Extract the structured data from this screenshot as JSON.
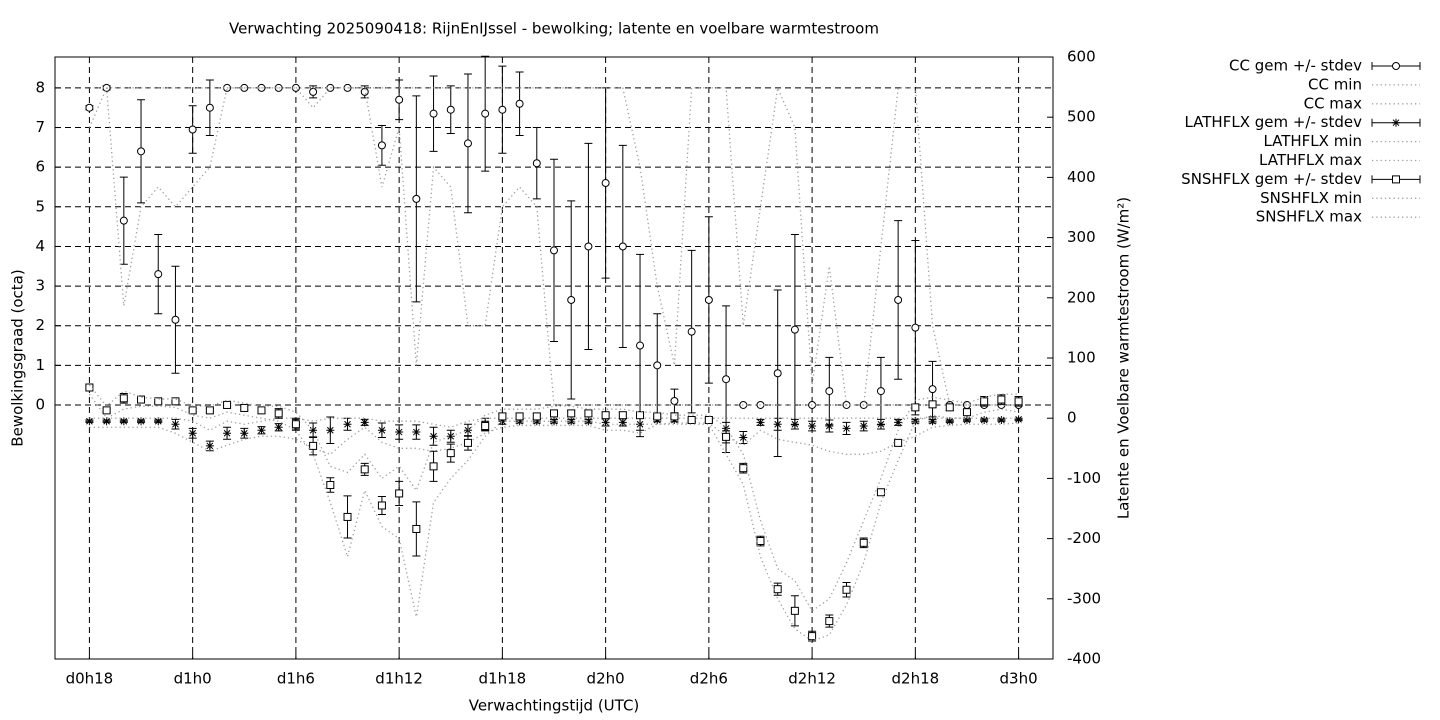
{
  "chart_data": {
    "type": "errorbar",
    "title": "Verwachting 2025090418: RijnEnIJssel - bewolking; latente en voelbare warmtestroom",
    "xlabel": "Verwachtingstijd (UTC)",
    "ylabel": "Bewolkingsgraad (octa)",
    "y2label": "Latente en Voelbare warmtestroom (W/m²)",
    "grid": true,
    "legend": "outside-right",
    "x": [
      18,
      19,
      20,
      21,
      22,
      23,
      24,
      25,
      26,
      27,
      28,
      29,
      30,
      31,
      32,
      33,
      34,
      35,
      36,
      37,
      38,
      39,
      40,
      41,
      42,
      43,
      44,
      45,
      46,
      47,
      48,
      49,
      50,
      51,
      52,
      53,
      54,
      55,
      56,
      57,
      58,
      59,
      60,
      61,
      62,
      63,
      64,
      65,
      66,
      67,
      68,
      69,
      70,
      71,
      72
    ],
    "xlim": [
      16,
      74
    ],
    "xticks": [
      {
        "value": 18,
        "label": "d0h18"
      },
      {
        "value": 24,
        "label": "d1h0"
      },
      {
        "value": 30,
        "label": "d1h6"
      },
      {
        "value": 36,
        "label": "d1h12"
      },
      {
        "value": 42,
        "label": "d1h18"
      },
      {
        "value": 48,
        "label": "d2h0"
      },
      {
        "value": 54,
        "label": "d2h6"
      },
      {
        "value": 60,
        "label": "d2h12"
      },
      {
        "value": 66,
        "label": "d2h18"
      },
      {
        "value": 72,
        "label": "d3h0"
      }
    ],
    "ylim": [
      -6.41,
      8.78
    ],
    "yticks": [
      0,
      1,
      2,
      3,
      4,
      5,
      6,
      7,
      8
    ],
    "y2lim": [
      -400,
      600
    ],
    "y2ticks": [
      -400,
      -300,
      -200,
      -100,
      0,
      100,
      200,
      300,
      400,
      500,
      600
    ],
    "series": [
      {
        "name": "CC gem +/- stdev",
        "color": "#000000",
        "style": "errorbars",
        "marker": "circle",
        "values": [
          7.5,
          8,
          4.65,
          6.4,
          3.3,
          2.15,
          6.95,
          7.5,
          8,
          8,
          8,
          8,
          8,
          7.9,
          8,
          8,
          7.9,
          6.55,
          7.7,
          5.2,
          7.35,
          7.45,
          6.6,
          7.35,
          7.45,
          7.6,
          6.1,
          3.9,
          2.65,
          4.0,
          5.6,
          4.0,
          1.5,
          1.0,
          0.1,
          1.85,
          2.65,
          0.65,
          0,
          0,
          0.8,
          1.9,
          0,
          0.35,
          0,
          0,
          0.35,
          2.65,
          1.95,
          0.4,
          0,
          0,
          0,
          0,
          0
        ],
        "errors": [
          0.05,
          0.05,
          1.1,
          1.3,
          1.0,
          1.35,
          0.6,
          0.7,
          0,
          0,
          0,
          0,
          0,
          0.15,
          0,
          0,
          0.15,
          0.5,
          0.5,
          2.6,
          0.95,
          0.6,
          1.75,
          1.45,
          1.1,
          0.8,
          0.9,
          2.3,
          2.5,
          2.6,
          2.4,
          2.55,
          2.3,
          1.3,
          0.3,
          2.05,
          2.1,
          1.85,
          0,
          0,
          2.1,
          2.4,
          0,
          0.85,
          0,
          0,
          0.85,
          2.0,
          2.2,
          0.7,
          0,
          0,
          0,
          0,
          0
        ]
      },
      {
        "name": "CC min",
        "color": "#a0a0a0",
        "style": "dotted",
        "values": [
          7,
          8,
          2.5,
          5,
          5.5,
          5,
          5.5,
          6,
          8,
          8,
          8,
          8,
          8,
          7.5,
          8,
          8,
          8,
          5.5,
          7,
          1,
          6,
          5.5,
          2,
          2,
          5,
          5.5,
          5,
          0,
          0,
          0,
          0,
          0,
          0,
          0,
          0,
          0,
          0,
          0,
          0,
          0,
          0,
          0,
          0,
          0,
          0,
          0,
          0,
          0,
          0,
          0,
          0,
          0,
          0,
          0,
          0
        ]
      },
      {
        "name": "CC max",
        "color": "#a0a0a0",
        "style": "dotted",
        "values": [
          8,
          8,
          8,
          8,
          8,
          8,
          8,
          8,
          8,
          8,
          8,
          8,
          8,
          8,
          8,
          8,
          8,
          8,
          8,
          8,
          8,
          8,
          8,
          8,
          8,
          8,
          8,
          8,
          8,
          8,
          8,
          8,
          6,
          3,
          1,
          8,
          8,
          8,
          2,
          5,
          8,
          7,
          0.5,
          3.5,
          0,
          0,
          4,
          8,
          8,
          2,
          0,
          0,
          0,
          0,
          0
        ]
      },
      {
        "name": "LATHFLX gem +/- stdev",
        "color": "#000000",
        "style": "errorbars",
        "marker": "star",
        "axis": "y2",
        "values": [
          -5,
          -5,
          -5,
          -5,
          -5,
          -10,
          -25,
          -46,
          -25,
          -25,
          -20,
          -15,
          -10,
          -20,
          -20,
          -10,
          -7,
          -20,
          -23,
          -23,
          -30,
          -30,
          -20,
          -10,
          -5,
          -5,
          -5,
          -5,
          -5,
          -5,
          -7,
          -7,
          -10,
          -3,
          -3,
          -3,
          -3,
          -17,
          -32,
          -7,
          -10,
          -10,
          -13,
          -13,
          -17,
          -13,
          -10,
          -7,
          -5,
          -5,
          -5,
          -3,
          -3,
          -3,
          -2
        ],
        "errors": [
          2,
          2,
          2,
          2,
          2,
          8,
          8,
          8,
          10,
          8,
          6,
          6,
          8,
          12,
          22,
          10,
          5,
          12,
          12,
          12,
          15,
          10,
          10,
          10,
          5,
          3,
          3,
          3,
          3,
          3,
          6,
          6,
          10,
          3,
          3,
          3,
          3,
          10,
          10,
          5,
          10,
          8,
          8,
          10,
          10,
          8,
          8,
          5,
          3,
          3,
          2,
          2,
          2,
          2,
          2
        ]
      },
      {
        "name": "LATHFLX min",
        "color": "#a0a0a0",
        "style": "dotted",
        "axis": "y2",
        "values": [
          -15,
          -15,
          -15,
          -15,
          -15,
          -25,
          -40,
          -55,
          -45,
          -35,
          -30,
          -30,
          -35,
          -50,
          -60,
          -35,
          -15,
          -40,
          -50,
          -50,
          -55,
          -50,
          -40,
          -25,
          -15,
          -12,
          -12,
          -12,
          -12,
          -12,
          -20,
          -20,
          -25,
          -10,
          -8,
          -8,
          -8,
          -30,
          -45,
          -20,
          -35,
          -40,
          -45,
          -55,
          -60,
          -60,
          -55,
          -40,
          -30,
          -15,
          -12,
          -10,
          -10,
          -10,
          -8
        ]
      },
      {
        "name": "LATHFLX max",
        "color": "#a0a0a0",
        "style": "dotted",
        "axis": "y2",
        "values": [
          0,
          0,
          0,
          0,
          0,
          0,
          -5,
          -20,
          -5,
          -10,
          -5,
          0,
          0,
          -5,
          0,
          0,
          0,
          -5,
          -5,
          -5,
          -10,
          -15,
          -5,
          0,
          0,
          0,
          0,
          0,
          0,
          0,
          0,
          0,
          0,
          0,
          0,
          0,
          0,
          0,
          0,
          0,
          0,
          0,
          0,
          0,
          0,
          0,
          0,
          0,
          0,
          0,
          0,
          0,
          0,
          0,
          0
        ]
      },
      {
        "name": "SNSHFLX gem +/- stdev",
        "color": "#000000",
        "style": "errorbars",
        "marker": "square",
        "axis": "y2",
        "values": [
          51,
          13,
          33,
          31,
          28,
          28,
          13,
          13,
          22,
          17,
          13,
          8,
          -10,
          -46,
          -111,
          -164,
          -85,
          -145,
          -125,
          -184,
          -80,
          -58,
          -41,
          -13,
          3,
          3,
          3,
          8,
          8,
          8,
          5,
          5,
          5,
          3,
          3,
          -3,
          -3,
          -31,
          -83,
          -204,
          -284,
          -320,
          -362,
          -337,
          -285,
          -207,
          -123,
          -41,
          18,
          23,
          18,
          10,
          28,
          31,
          28
        ],
        "errors": [
          3,
          3,
          8,
          3,
          3,
          3,
          3,
          3,
          3,
          3,
          5,
          8,
          10,
          15,
          12,
          35,
          10,
          15,
          20,
          45,
          25,
          15,
          12,
          8,
          5,
          5,
          5,
          5,
          5,
          5,
          5,
          5,
          5,
          3,
          3,
          3,
          3,
          10,
          8,
          8,
          10,
          25,
          8,
          10,
          12,
          8,
          5,
          5,
          5,
          5,
          5,
          5,
          8,
          8,
          8
        ]
      },
      {
        "name": "SNSHFLX min",
        "color": "#a0a0a0",
        "style": "dotted",
        "axis": "y2",
        "values": [
          40,
          0,
          15,
          20,
          20,
          18,
          5,
          0,
          10,
          5,
          0,
          -5,
          -20,
          -60,
          -140,
          -230,
          -120,
          -180,
          -200,
          -330,
          -140,
          -100,
          -70,
          -30,
          -5,
          -5,
          -5,
          -5,
          -5,
          -5,
          -10,
          -10,
          -10,
          -10,
          -10,
          -10,
          -10,
          -60,
          -110,
          -230,
          -300,
          -350,
          -370,
          -360,
          -310,
          -240,
          -140,
          -70,
          -5,
          5,
          0,
          0,
          10,
          15,
          10
        ]
      },
      {
        "name": "SNSHFLX max",
        "color": "#a0a0a0",
        "style": "dotted",
        "axis": "y2",
        "values": [
          55,
          20,
          45,
          35,
          32,
          32,
          20,
          20,
          30,
          25,
          20,
          20,
          10,
          -20,
          -80,
          -90,
          -60,
          -100,
          -80,
          -120,
          -40,
          -30,
          -20,
          5,
          15,
          15,
          15,
          20,
          20,
          15,
          15,
          15,
          10,
          10,
          5,
          5,
          5,
          -15,
          -60,
          -170,
          -250,
          -270,
          -320,
          -300,
          -240,
          -170,
          -100,
          -20,
          30,
          35,
          30,
          25,
          35,
          40,
          40
        ]
      }
    ]
  }
}
